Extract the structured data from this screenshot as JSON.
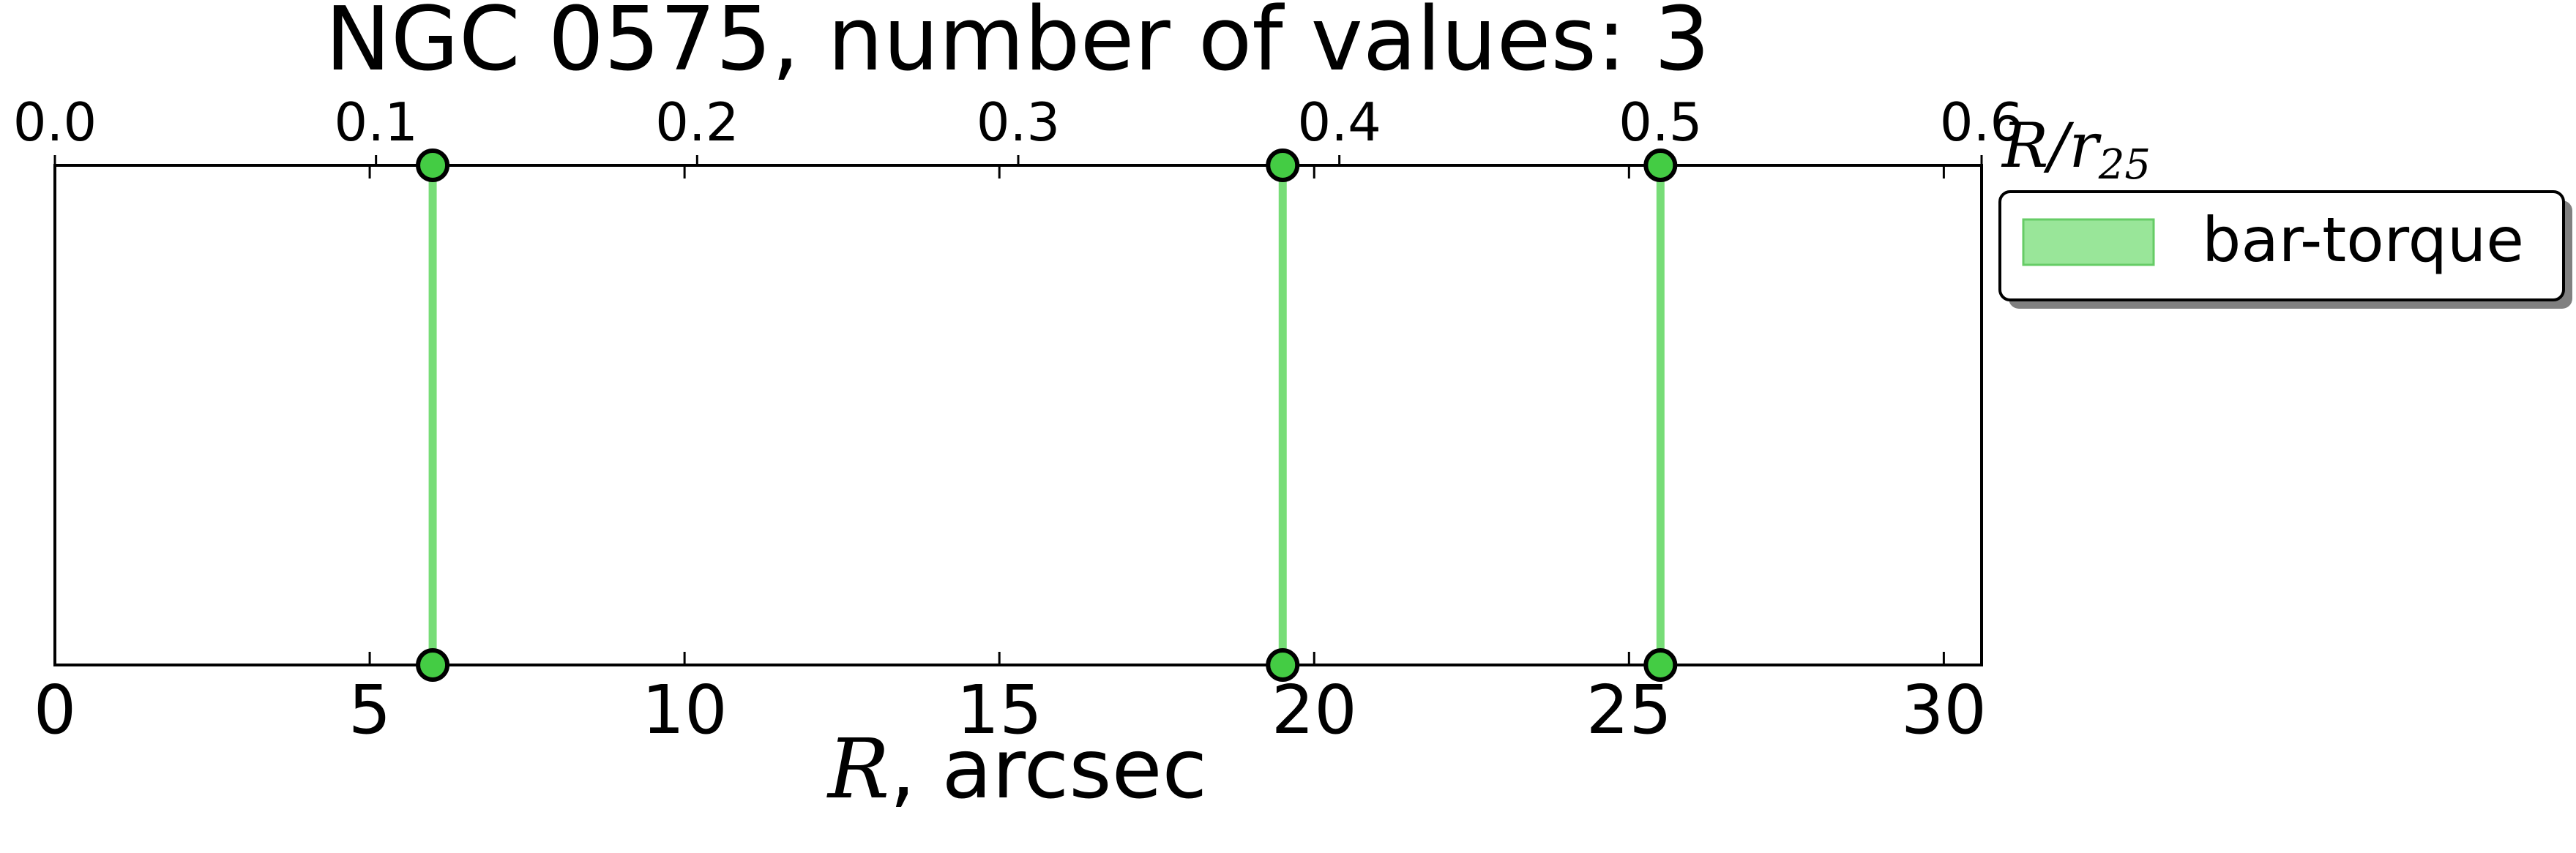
{
  "chart_data": {
    "type": "line",
    "title": "NGC 0575, number of values: 3",
    "xlabel": {
      "symbol": "R",
      "unit": ", arcsec"
    },
    "top_axis_label": {
      "symbol": "R/r",
      "subscript": "25"
    },
    "xlim": [
      0,
      30.6
    ],
    "ticks": [
      0,
      5,
      10,
      15,
      20,
      25,
      30
    ],
    "tick_labels": [
      "0",
      "5",
      "10",
      "15",
      "20",
      "25",
      "30"
    ],
    "top_xlim": [
      0,
      0.6
    ],
    "top_ticks": [
      0.0,
      0.1,
      0.2,
      0.3,
      0.4,
      0.5,
      0.6
    ],
    "top_tick_labels": [
      "0.0",
      "0.1",
      "0.2",
      "0.3",
      "0.4",
      "0.5",
      "0.6"
    ],
    "series": [
      {
        "name": "bar-torque",
        "color": "#77dd77",
        "x": [
          6.0,
          19.5,
          25.5
        ]
      }
    ],
    "legend": {
      "position": "outside right, top",
      "label": "bar-torque"
    },
    "grid": false,
    "colors": {
      "line": "#77dd77",
      "marker_fill": "#44cc44",
      "marker_edge": "#000000",
      "legend_patch": "#99e699"
    }
  }
}
